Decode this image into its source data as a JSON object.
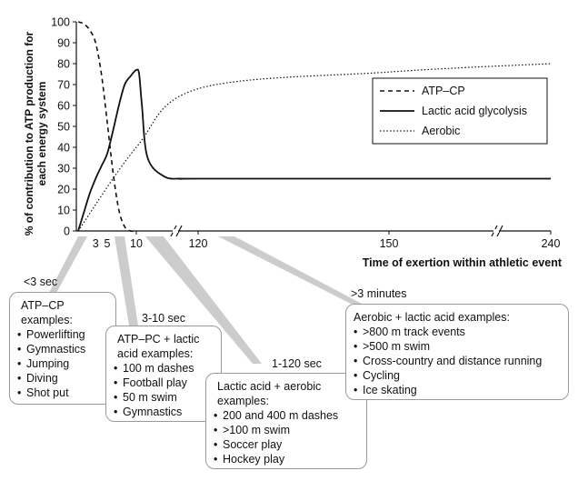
{
  "chart_data": {
    "type": "line",
    "title": "",
    "ylabel": "% of contribution to ATP production for each energy system",
    "xlabel": "Time of exertion within athletic event",
    "ylim": [
      0,
      100
    ],
    "y_ticks": [
      "0",
      "10",
      "20",
      "30",
      "40",
      "50",
      "60",
      "70",
      "80",
      "90",
      "100"
    ],
    "x_ticks": [
      "3",
      "5",
      "10",
      "120",
      "150",
      "240"
    ],
    "x_axis_note": "broken axis between 10 and 120, and between 150 and 240",
    "grid": false,
    "legend_position": "top-right",
    "series": [
      {
        "name": "ATP–CP",
        "style": "dashed",
        "x": [
          0,
          1,
          2,
          3,
          4,
          5,
          6,
          7,
          8,
          9,
          10
        ],
        "y": [
          100,
          99,
          96,
          90,
          75,
          52,
          28,
          10,
          2,
          0,
          0
        ]
      },
      {
        "name": "Lactic acid glycolysis",
        "style": "solid",
        "x": [
          0,
          1,
          2,
          3,
          4,
          5,
          6,
          7,
          8,
          9,
          10,
          15,
          20,
          30,
          60,
          90,
          120,
          150,
          240
        ],
        "y": [
          0,
          9,
          18,
          25,
          31,
          37,
          48,
          60,
          70,
          74,
          77,
          75,
          60,
          35,
          26,
          25,
          25,
          25,
          25
        ]
      },
      {
        "name": "Aerobic",
        "style": "dotted",
        "x": [
          0,
          10,
          120,
          150,
          240
        ],
        "y": [
          0,
          40,
          68,
          76,
          80
        ],
        "x_note": "values read across the broken time axis"
      }
    ]
  },
  "legend": [
    {
      "label": "ATP–CP",
      "style": "dashed"
    },
    {
      "label": "Lactic acid glycolysis",
      "style": "solid"
    },
    {
      "label": "Aerobic",
      "style": "dotted"
    }
  ],
  "callouts": [
    {
      "time_label": "<3 sec",
      "heading": "ATP–CP\nexamples:",
      "items": [
        "Powerlifting",
        "Gymnastics",
        "Jumping",
        "Diving",
        "Shot put"
      ]
    },
    {
      "time_label": "3-10 sec",
      "heading": "ATP–PC + lactic\nacid examples:",
      "items": [
        "100 m dashes",
        "Football play",
        "50 m swim",
        "Gymnastics"
      ]
    },
    {
      "time_label": "1-120 sec",
      "heading": "Lactic acid + aerobic\nexamples:",
      "items": [
        "200 and 400 m dashes",
        ">100 m swim",
        "Soccer play",
        "Hockey play"
      ]
    },
    {
      "time_label": ">3 minutes",
      "heading": "Aerobic + lactic acid examples:",
      "items": [
        ">800 m track events",
        ">500 m swim",
        "Cross-country and distance running",
        "Cycling",
        "Ice skating"
      ]
    }
  ],
  "colors": {
    "callout_wedge": "#cccccc",
    "callout_border": "#9a9a9a",
    "line": "#111111"
  }
}
